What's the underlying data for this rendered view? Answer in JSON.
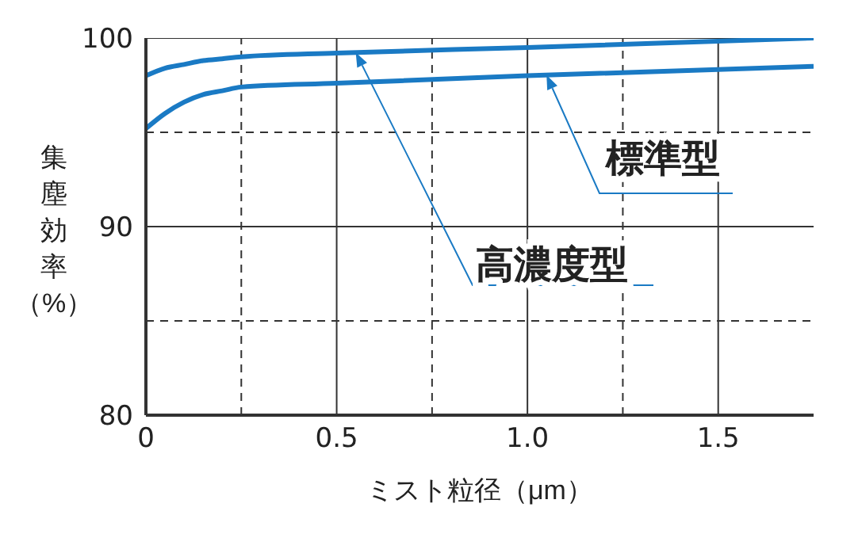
{
  "chart_data": {
    "type": "line",
    "xlabel": "ミスト粒径（μm）",
    "ylabel": "集塵効率（%）",
    "xlim": [
      0,
      1.75
    ],
    "ylim": [
      80,
      100
    ],
    "xticks": [
      0,
      {
        "value": 0.25,
        "label": null
      },
      {
        "value": 0.5,
        "label": "0.5"
      },
      {
        "value": 0.75,
        "label": null
      },
      {
        "value": 1,
        "label": "1.0"
      },
      {
        "value": 1.25,
        "label": null
      },
      {
        "value": 1.5,
        "label": "1.5"
      }
    ],
    "yticks": [
      80,
      {
        "value": 85,
        "label": null
      },
      90,
      {
        "value": 95,
        "label": null
      },
      100
    ],
    "grid": true,
    "marker": "none",
    "line_style": "solid",
    "series": [
      {
        "name": "高濃度型",
        "color": "#1a7ac4",
        "x": [
          0,
          0.05,
          0.1,
          0.15,
          0.2,
          0.25,
          0.5,
          1,
          1.75
        ],
        "values": [
          98,
          98.4,
          98.6,
          98.8,
          98.9,
          99,
          99.2,
          99.5,
          100
        ]
      },
      {
        "name": "標準型",
        "color": "#1a7ac4",
        "x": [
          0,
          0.05,
          0.1,
          0.15,
          0.2,
          0.25,
          0.5,
          1,
          1.75
        ],
        "values": [
          95.2,
          96,
          96.6,
          97,
          97.2,
          97.4,
          97.6,
          98,
          98.5
        ]
      }
    ]
  }
}
